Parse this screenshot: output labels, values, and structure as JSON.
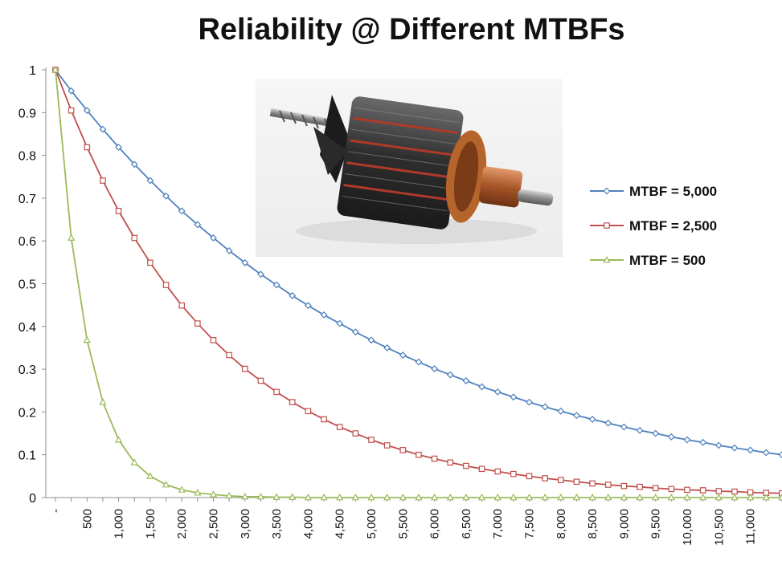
{
  "chart_data": {
    "type": "line",
    "title": "Reliability @ Different MTBFs",
    "xlabel": "",
    "ylabel": "",
    "x_step": 250,
    "x_count": 47,
    "ylim": [
      0,
      1
    ],
    "y_ticks": [
      "0",
      "0.1",
      "0.2",
      "0.3",
      "0.4",
      "0.5",
      "0.6",
      "0.7",
      "0.8",
      "0.9",
      "1"
    ],
    "x_tick_labels": [
      "-",
      "500",
      "1,000",
      "1,500",
      "2,000",
      "2,500",
      "3,000",
      "3,500",
      "4,000",
      "4,500",
      "5,000",
      "5,500",
      "6,000",
      "6,500",
      "7,000",
      "7,500",
      "8,000",
      "8,500",
      "9,000",
      "9,500",
      "10,000",
      "10,500",
      "11,000"
    ],
    "grid": false,
    "legend_position": "right",
    "series": [
      {
        "name": "MTBF = 5,000",
        "mtbf": 5000,
        "color": "#4f81bd",
        "marker": "diamond",
        "values": [
          1.0,
          0.951,
          0.905,
          0.861,
          0.819,
          0.779,
          0.741,
          0.705,
          0.67,
          0.638,
          0.607,
          0.577,
          0.549,
          0.522,
          0.497,
          0.472,
          0.449,
          0.427,
          0.407,
          0.387,
          0.368,
          0.35,
          0.333,
          0.317,
          0.301,
          0.287,
          0.273,
          0.259,
          0.247,
          0.235,
          0.223,
          0.212,
          0.202,
          0.192,
          0.183,
          0.174,
          0.165,
          0.157,
          0.15,
          0.142,
          0.135,
          0.129,
          0.122,
          0.116,
          0.111,
          0.105,
          0.1
        ]
      },
      {
        "name": "MTBF = 2,500",
        "mtbf": 2500,
        "color": "#c0504d",
        "marker": "square",
        "values": [
          1.0,
          0.905,
          0.819,
          0.741,
          0.67,
          0.607,
          0.549,
          0.497,
          0.449,
          0.407,
          0.368,
          0.333,
          0.301,
          0.273,
          0.247,
          0.223,
          0.202,
          0.183,
          0.165,
          0.15,
          0.135,
          0.122,
          0.111,
          0.1,
          0.091,
          0.082,
          0.074,
          0.067,
          0.061,
          0.055,
          0.05,
          0.045,
          0.041,
          0.037,
          0.033,
          0.03,
          0.027,
          0.025,
          0.022,
          0.02,
          0.018,
          0.017,
          0.015,
          0.014,
          0.012,
          0.011,
          0.01
        ]
      },
      {
        "name": "MTBF = 500",
        "mtbf": 500,
        "color": "#9bbb59",
        "marker": "triangle",
        "values": [
          1.0,
          0.607,
          0.368,
          0.223,
          0.135,
          0.082,
          0.05,
          0.03,
          0.018,
          0.011,
          0.007,
          0.004,
          0.002,
          0.002,
          0.001,
          0.001,
          0.0,
          0.0,
          0.0,
          0.0,
          0.0,
          0.0,
          0.0,
          0.0,
          0.0,
          0.0,
          0.0,
          0.0,
          0.0,
          0.0,
          0.0,
          0.0,
          0.0,
          0.0,
          0.0,
          0.0,
          0.0,
          0.0,
          0.0,
          0.0,
          0.0,
          0.0,
          0.0,
          0.0,
          0.0,
          0.0,
          0.0
        ]
      }
    ]
  },
  "image": {
    "subject": "electric-motor-armature"
  }
}
